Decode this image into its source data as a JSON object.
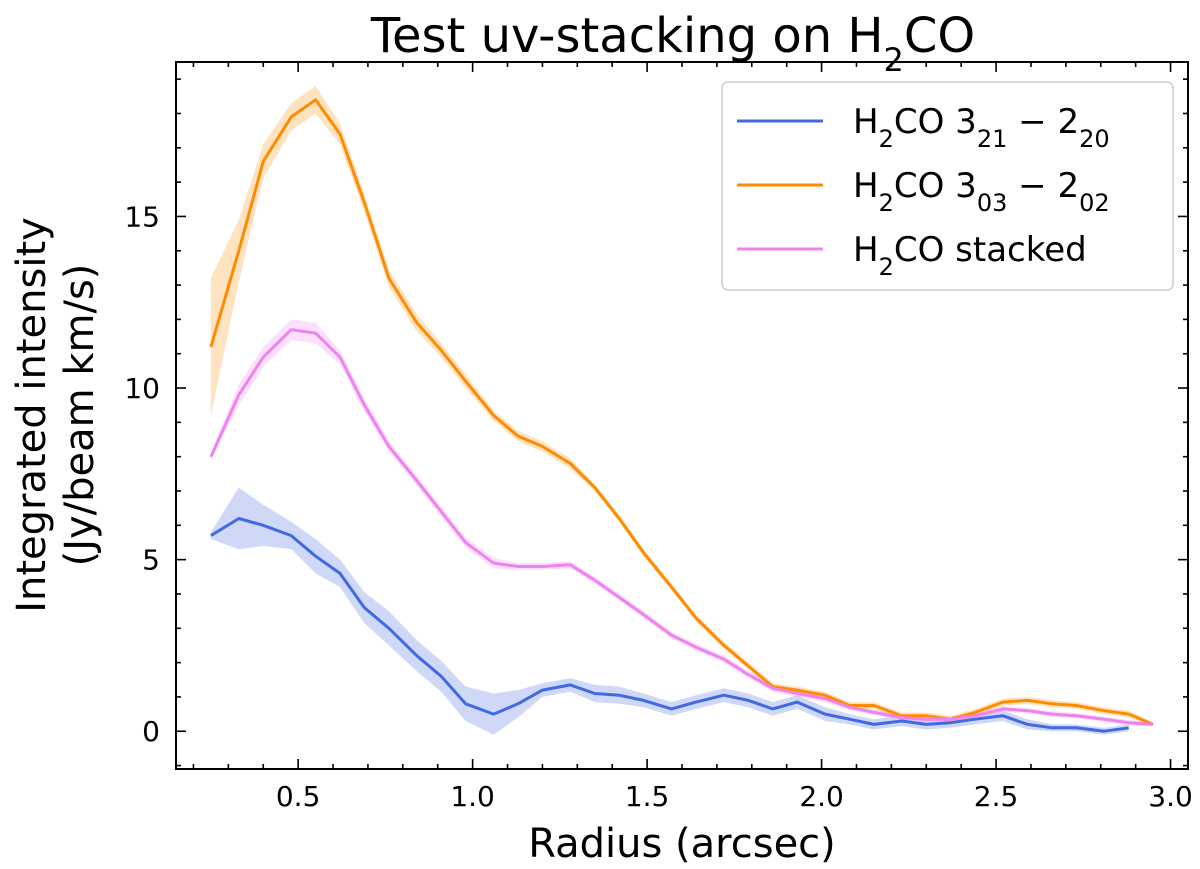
{
  "chart_data": {
    "type": "line",
    "title_main": "Test uv-stacking on H",
    "title_sub": "2",
    "title_end": "CO",
    "xlabel": "Radius (arcsec)",
    "ylabel_line1": "Integrated intensity",
    "ylabel_line2": "(Jy/beam km/s)",
    "xlim": [
      0.15,
      3.05
    ],
    "ylim": [
      -1.1,
      19.5
    ],
    "xticks": [
      "0.5",
      "1.0",
      "1.5",
      "2.0",
      "2.5",
      "3.0"
    ],
    "yticks": [
      "0",
      "5",
      "10",
      "15"
    ],
    "legend_position": "top-right",
    "series": [
      {
        "legend_main": "H",
        "legend_sub": "2",
        "legend_mid": "CO 3",
        "legend_sub2": "21",
        "legend_mid2": " − 2",
        "legend_sub3": "20",
        "color": "#4169e1",
        "x": [
          0.25,
          0.33,
          0.4,
          0.48,
          0.55,
          0.62,
          0.69,
          0.76,
          0.84,
          0.91,
          0.98,
          1.06,
          1.13,
          1.2,
          1.28,
          1.35,
          1.42,
          1.49,
          1.57,
          1.64,
          1.72,
          1.79,
          1.86,
          1.93,
          2.01,
          2.08,
          2.15,
          2.23,
          2.3,
          2.37,
          2.44,
          2.52,
          2.59,
          2.66,
          2.73,
          2.81,
          2.88
        ],
        "y": [
          5.7,
          6.2,
          6.0,
          5.7,
          5.1,
          4.6,
          3.6,
          3.0,
          2.2,
          1.6,
          0.8,
          0.5,
          0.8,
          1.2,
          1.35,
          1.1,
          1.05,
          0.9,
          0.65,
          0.85,
          1.05,
          0.9,
          0.65,
          0.85,
          0.5,
          0.35,
          0.2,
          0.3,
          0.2,
          0.25,
          0.35,
          0.45,
          0.2,
          0.1,
          0.1,
          0.0,
          0.1
        ],
        "err": [
          0.1,
          0.9,
          0.6,
          0.4,
          0.5,
          0.4,
          0.45,
          0.5,
          0.45,
          0.45,
          0.5,
          0.6,
          0.4,
          0.2,
          0.2,
          0.25,
          0.25,
          0.2,
          0.2,
          0.2,
          0.2,
          0.2,
          0.2,
          0.2,
          0.2,
          0.15,
          0.15,
          0.15,
          0.15,
          0.15,
          0.15,
          0.15,
          0.15,
          0.1,
          0.1,
          0.1,
          0.1
        ]
      },
      {
        "legend_main": "H",
        "legend_sub": "2",
        "legend_mid": "CO 3",
        "legend_sub2": "03",
        "legend_mid2": " − 2",
        "legend_sub3": "02",
        "color": "#ff8c00",
        "x": [
          0.25,
          0.33,
          0.4,
          0.48,
          0.55,
          0.62,
          0.69,
          0.76,
          0.84,
          0.91,
          0.98,
          1.06,
          1.13,
          1.2,
          1.28,
          1.35,
          1.42,
          1.49,
          1.57,
          1.64,
          1.72,
          1.79,
          1.86,
          1.93,
          2.01,
          2.08,
          2.15,
          2.23,
          2.3,
          2.37,
          2.44,
          2.52,
          2.59,
          2.66,
          2.73,
          2.81,
          2.88,
          2.95
        ],
        "y": [
          11.2,
          14.0,
          16.6,
          17.9,
          18.4,
          17.4,
          15.4,
          13.2,
          11.9,
          11.1,
          10.2,
          9.2,
          8.6,
          8.3,
          7.8,
          7.1,
          6.2,
          5.2,
          4.2,
          3.3,
          2.5,
          1.9,
          1.3,
          1.2,
          1.05,
          0.75,
          0.75,
          0.45,
          0.45,
          0.35,
          0.55,
          0.85,
          0.9,
          0.8,
          0.75,
          0.6,
          0.5,
          0.2
        ],
        "err": [
          2.0,
          0.9,
          0.5,
          0.4,
          0.4,
          0.3,
          0.25,
          0.25,
          0.25,
          0.2,
          0.2,
          0.15,
          0.15,
          0.15,
          0.15,
          0.1,
          0.1,
          0.1,
          0.1,
          0.1,
          0.1,
          0.1,
          0.1,
          0.1,
          0.1,
          0.1,
          0.1,
          0.1,
          0.1,
          0.1,
          0.1,
          0.1,
          0.1,
          0.1,
          0.1,
          0.1,
          0.1,
          0.05
        ]
      },
      {
        "legend_main": "H",
        "legend_sub": "2",
        "legend_mid": "CO stacked",
        "legend_sub2": "",
        "legend_mid2": "",
        "legend_sub3": "",
        "color": "#ee82ee",
        "x": [
          0.25,
          0.33,
          0.4,
          0.48,
          0.55,
          0.62,
          0.69,
          0.76,
          0.84,
          0.91,
          0.98,
          1.06,
          1.13,
          1.2,
          1.28,
          1.35,
          1.42,
          1.49,
          1.57,
          1.64,
          1.72,
          1.79,
          1.86,
          1.93,
          2.01,
          2.08,
          2.15,
          2.23,
          2.3,
          2.37,
          2.44,
          2.52,
          2.59,
          2.66,
          2.73,
          2.81,
          2.88,
          2.95
        ],
        "y": [
          8.0,
          9.8,
          10.9,
          11.7,
          11.6,
          10.9,
          9.5,
          8.3,
          7.3,
          6.4,
          5.5,
          4.9,
          4.8,
          4.8,
          4.85,
          4.4,
          3.9,
          3.4,
          2.8,
          2.45,
          2.1,
          1.65,
          1.25,
          1.1,
          0.95,
          0.7,
          0.55,
          0.4,
          0.35,
          0.35,
          0.45,
          0.65,
          0.6,
          0.5,
          0.45,
          0.35,
          0.25,
          0.2
        ],
        "err": [
          0.1,
          0.3,
          0.3,
          0.3,
          0.3,
          0.2,
          0.2,
          0.15,
          0.15,
          0.15,
          0.15,
          0.15,
          0.1,
          0.1,
          0.1,
          0.1,
          0.1,
          0.1,
          0.1,
          0.1,
          0.1,
          0.1,
          0.1,
          0.1,
          0.1,
          0.08,
          0.08,
          0.08,
          0.08,
          0.08,
          0.08,
          0.08,
          0.08,
          0.08,
          0.08,
          0.08,
          0.08,
          0.05
        ]
      }
    ]
  }
}
